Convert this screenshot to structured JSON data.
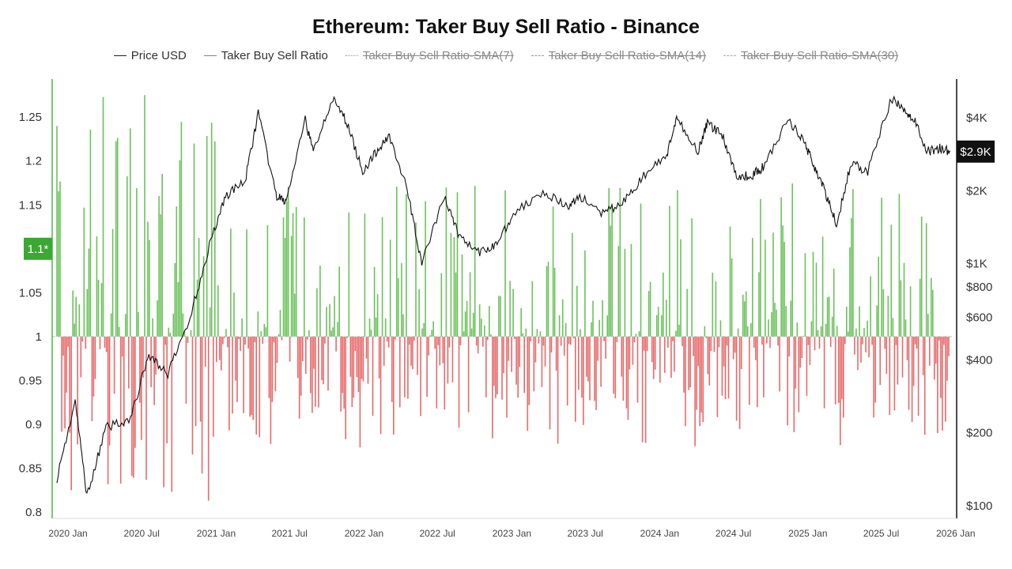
{
  "chart_data": {
    "type": "bar",
    "title": "Ethereum: Taker Buy Sell Ratio - Binance",
    "legend": [
      {
        "label": "Price USD",
        "style": "solid",
        "color": "#222222",
        "visible": true
      },
      {
        "label": "Taker Buy Sell Ratio",
        "style": "solid",
        "color": "#7b77d6",
        "visible": true
      },
      {
        "label": "Taker Buy Sell Ratio-SMA(7)",
        "style": "dotted",
        "color": "#999999",
        "visible": false
      },
      {
        "label": "Taker Buy Sell Ratio-SMA(14)",
        "style": "dashed",
        "color": "#999999",
        "visible": false
      },
      {
        "label": "Taker Buy Sell Ratio-SMA(30)",
        "style": "dashed",
        "color": "#aaaaaa",
        "visible": false
      }
    ],
    "legend_position": "top-center",
    "x_labels": [
      "2020 Jan",
      "2020 Jul",
      "2021 Jan",
      "2021 Jul",
      "2022 Jan",
      "2022 Jul",
      "2023 Jan",
      "2023 Jul",
      "2024 Jan",
      "2024 Jul",
      "2025 Jan",
      "2025 Jul",
      "2026 Jan"
    ],
    "x_range": [
      "2020-01-01",
      "2026-01-15"
    ],
    "y_left": {
      "ticks": [
        "1.25",
        "1.2",
        "1.15",
        "1.1",
        "1.05",
        "1",
        "0.95",
        "0.9",
        "0.85",
        "0.8"
      ],
      "range": [
        0.8,
        1.27
      ]
    },
    "y_right": {
      "scale": "log",
      "ticks": [
        "$4K",
        "$2K",
        "$1K",
        "$800",
        "$600",
        "$400",
        "$200",
        "$100"
      ],
      "tick_values": [
        4000,
        2000,
        1000,
        800,
        600,
        400,
        200,
        100
      ],
      "range": [
        100,
        5500
      ]
    },
    "baseline": 1.0,
    "current_ratio_badge": "1.1*",
    "current_price_badge": "$2.9K",
    "colors": {
      "above": "#6cc25c",
      "below": "#e86a6a",
      "price": "#111111",
      "badge_ratio": "#3aa832",
      "badge_price": "#111111"
    },
    "price_series": {
      "name": "Price USD",
      "x": [
        "2020-01-01",
        "2020-02-15",
        "2020-03-15",
        "2020-05-01",
        "2020-07-01",
        "2020-08-15",
        "2020-10-01",
        "2020-11-25",
        "2021-01-15",
        "2021-02-20",
        "2021-04-10",
        "2021-05-12",
        "2021-06-25",
        "2021-07-20",
        "2021-09-05",
        "2021-09-25",
        "2021-11-10",
        "2021-12-15",
        "2022-01-25",
        "2022-03-01",
        "2022-04-01",
        "2022-05-15",
        "2022-06-20",
        "2022-08-15",
        "2022-09-20",
        "2022-11-10",
        "2022-12-20",
        "2023-02-01",
        "2023-04-15",
        "2023-06-15",
        "2023-07-15",
        "2023-09-10",
        "2023-11-01",
        "2023-12-20",
        "2024-02-15",
        "2024-03-12",
        "2024-05-01",
        "2024-05-25",
        "2024-07-01",
        "2024-08-05",
        "2024-09-10",
        "2024-10-10",
        "2024-12-10",
        "2025-01-15",
        "2025-02-10",
        "2025-03-10",
        "2025-04-09",
        "2025-05-15",
        "2025-06-25",
        "2025-08-23",
        "2025-09-20",
        "2025-10-15",
        "2025-11-20",
        "2025-12-20",
        "2026-01-15"
      ],
      "y": [
        130,
        270,
        110,
        210,
        230,
        420,
        350,
        600,
        1250,
        1900,
        2200,
        4200,
        1900,
        1800,
        3900,
        2900,
        4800,
        3900,
        2400,
        2900,
        3400,
        2000,
        1000,
        1900,
        1300,
        1100,
        1200,
        1600,
        2000,
        1700,
        1900,
        1600,
        1800,
        2300,
        2800,
        4000,
        2900,
        3800,
        3400,
        2300,
        2300,
        2500,
        3900,
        3300,
        2600,
        2000,
        1450,
        2600,
        2400,
        4800,
        4300,
        4000,
        2900,
        3000,
        2900
      ]
    }
  }
}
